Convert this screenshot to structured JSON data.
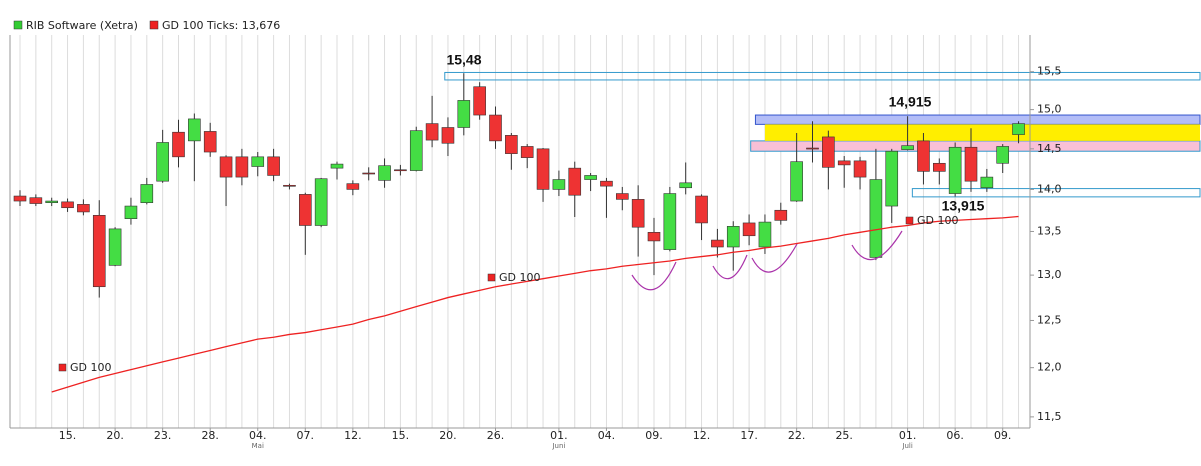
{
  "chart_data": {
    "type": "candlestick",
    "log": true,
    "categories": [
      null,
      null,
      null,
      "15.",
      null,
      null,
      "20.",
      null,
      null,
      "23.",
      null,
      null,
      "28.",
      null,
      null,
      "04.",
      null,
      null,
      "07.",
      null,
      null,
      "12.",
      null,
      null,
      "15.",
      null,
      null,
      "20.",
      null,
      null,
      "26.",
      null,
      null,
      null,
      "01.",
      null,
      null,
      "04.",
      null,
      null,
      "09.",
      null,
      null,
      "12.",
      null,
      null,
      "17.",
      null,
      null,
      "22.",
      null,
      null,
      "25.",
      null,
      null,
      null,
      "01.",
      null,
      null,
      "06.",
      null,
      null,
      "09.",
      null
    ],
    "months": [
      null,
      null,
      null,
      null,
      null,
      null,
      null,
      null,
      null,
      null,
      null,
      null,
      null,
      null,
      null,
      "Mai",
      null,
      null,
      null,
      null,
      null,
      null,
      null,
      null,
      null,
      null,
      null,
      null,
      null,
      null,
      null,
      null,
      null,
      null,
      "Juni",
      null,
      null,
      null,
      null,
      null,
      null,
      null,
      null,
      null,
      null,
      null,
      null,
      null,
      null,
      null,
      null,
      null,
      null,
      null,
      null,
      null,
      "Juli",
      null,
      null,
      null,
      null,
      null,
      null,
      null
    ],
    "series": [
      {
        "name": "RIB Software (Xetra)",
        "color": "#33cc33",
        "up_color": "#44dd44",
        "down_color": "#ee3333",
        "open": [
          13.92,
          13.9,
          13.84,
          13.85,
          13.82,
          13.69,
          13.11,
          13.65,
          13.84,
          14.1,
          14.71,
          14.6,
          14.72,
          14.4,
          14.4,
          14.28,
          14.4,
          14.05,
          13.94,
          13.57,
          14.26,
          14.07,
          14.2,
          14.11,
          14.24,
          14.23,
          14.82,
          14.77,
          14.77,
          15.3,
          14.93,
          14.67,
          14.53,
          14.5,
          14.0,
          14.26,
          14.12,
          14.1,
          13.95,
          13.88,
          13.49,
          13.29,
          14.02,
          13.92,
          13.4,
          13.32,
          13.6,
          13.32,
          13.75,
          13.86,
          14.51,
          14.65,
          14.35,
          14.35,
          13.2,
          13.8,
          14.49,
          14.6,
          14.32,
          13.95,
          14.52,
          14.02,
          14.32,
          14.68
        ],
        "high": [
          13.99,
          13.94,
          13.9,
          13.89,
          13.88,
          13.87,
          13.55,
          13.9,
          14.14,
          14.74,
          14.87,
          14.95,
          14.83,
          14.42,
          14.5,
          14.46,
          14.5,
          14.07,
          13.96,
          14.14,
          14.34,
          14.11,
          14.27,
          14.38,
          14.3,
          14.78,
          15.18,
          14.9,
          15.48,
          15.36,
          15.04,
          14.7,
          14.56,
          14.51,
          14.23,
          14.34,
          14.2,
          14.14,
          14.03,
          14.05,
          13.66,
          14.03,
          14.33,
          13.94,
          13.53,
          13.62,
          13.7,
          13.7,
          13.84,
          14.7,
          14.85,
          14.73,
          14.41,
          14.4,
          14.5,
          14.5,
          14.915,
          14.7,
          14.38,
          14.58,
          14.76,
          14.25,
          14.56,
          14.85
        ],
        "low": [
          13.8,
          13.8,
          13.8,
          13.73,
          13.69,
          12.75,
          13.1,
          13.58,
          13.82,
          14.08,
          14.27,
          14.1,
          14.4,
          13.8,
          14.05,
          14.16,
          14.1,
          14.0,
          13.23,
          13.55,
          14.12,
          13.93,
          14.11,
          14.02,
          14.17,
          14.22,
          14.52,
          14.41,
          14.67,
          14.87,
          14.5,
          14.24,
          14.26,
          13.85,
          13.92,
          13.67,
          13.98,
          13.66,
          13.75,
          13.21,
          13.0,
          13.27,
          13.94,
          13.4,
          13.2,
          13.05,
          13.34,
          13.24,
          13.58,
          13.85,
          14.33,
          14.0,
          14.02,
          14.0,
          13.17,
          13.6,
          14.48,
          14.06,
          14.06,
          13.915,
          13.97,
          13.97,
          14.2,
          14.57
        ],
        "close": [
          13.86,
          13.83,
          13.86,
          13.78,
          13.73,
          12.87,
          13.53,
          13.8,
          14.06,
          14.58,
          14.4,
          14.88,
          14.46,
          14.15,
          14.15,
          14.4,
          14.17,
          14.04,
          13.57,
          14.13,
          14.31,
          14.0,
          14.19,
          14.29,
          14.23,
          14.73,
          14.61,
          14.57,
          15.12,
          14.93,
          14.6,
          14.44,
          14.39,
          14.0,
          14.12,
          13.93,
          14.17,
          14.04,
          13.88,
          13.55,
          13.39,
          13.95,
          14.08,
          13.6,
          13.32,
          13.56,
          13.45,
          13.61,
          13.63,
          14.34,
          14.5,
          14.27,
          14.3,
          14.15,
          14.12,
          14.47,
          14.54,
          14.22,
          14.22,
          14.52,
          14.1,
          14.15,
          14.53,
          14.82
        ]
      },
      {
        "name": "GD 100 Ticks: 13,676",
        "color": "#ee2222",
        "values": [
          null,
          null,
          11.75,
          11.8,
          11.85,
          11.9,
          11.94,
          11.98,
          12.02,
          12.06,
          12.1,
          12.14,
          12.18,
          12.22,
          12.26,
          12.3,
          12.32,
          12.35,
          12.37,
          12.4,
          12.43,
          12.46,
          12.51,
          12.55,
          12.6,
          12.65,
          12.7,
          12.75,
          12.79,
          12.83,
          12.87,
          12.9,
          12.93,
          12.96,
          12.99,
          13.02,
          13.05,
          13.07,
          13.1,
          13.12,
          13.14,
          13.16,
          13.19,
          13.21,
          13.23,
          13.26,
          13.28,
          13.31,
          13.33,
          13.36,
          13.39,
          13.42,
          13.46,
          13.49,
          13.52,
          13.55,
          13.57,
          13.6,
          13.62,
          13.63,
          13.64,
          13.65,
          13.66,
          13.676
        ]
      }
    ],
    "ylim": [
      11.39,
      16.0
    ],
    "yticks": [
      {
        "value": 15.5,
        "label": "15,5"
      },
      {
        "value": 15.0,
        "label": "15,0"
      },
      {
        "value": 14.5,
        "label": "14,5"
      },
      {
        "value": 14.0,
        "label": "14,0"
      },
      {
        "value": 13.5,
        "label": "13,5"
      },
      {
        "value": 13.0,
        "label": "13,0"
      },
      {
        "value": 12.5,
        "label": "12,5"
      },
      {
        "value": 12.0,
        "label": "12,0"
      },
      {
        "value": 11.5,
        "label": "11,5"
      }
    ],
    "zones": [
      {
        "low": 15.39,
        "high": 15.49,
        "start": 26.8,
        "fill": "none",
        "stroke": "#3399cc"
      },
      {
        "low": 14.81,
        "high": 14.93,
        "start": 46.4,
        "fill": "#b3bdf7",
        "stroke": "#3355cc"
      },
      {
        "low": 14.47,
        "high": 14.6,
        "start": 46.1,
        "fill": "#f9c0d6",
        "stroke": "#3399cc"
      },
      {
        "low": 14.6,
        "high": 14.81,
        "start": 47.0,
        "fill": "#ffee00",
        "stroke": "none"
      },
      {
        "low": 13.91,
        "high": 14.01,
        "start": 56.3,
        "fill": "none",
        "stroke": "#3399cc"
      }
    ],
    "annotations": [
      "15,48",
      "14,915",
      "13,915"
    ],
    "gd_labels": [
      "GD 100",
      "GD 100",
      "GD 100"
    ]
  }
}
